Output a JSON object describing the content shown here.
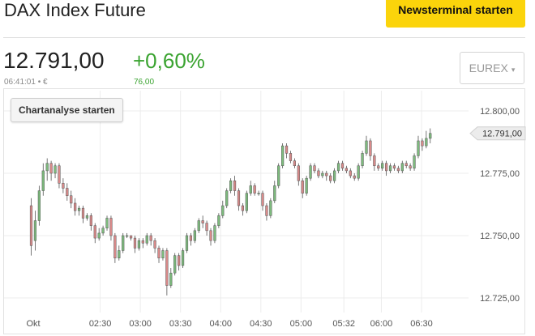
{
  "header": {
    "title": "DAX Index Future",
    "news_button": "Newsterminal starten"
  },
  "quote": {
    "price": "12.791,00",
    "time_currency": "06:41:01 • €",
    "change_pct": "+0,60%",
    "change_abs": "76,00",
    "exchange": "EUREX",
    "exchange_arrow": "▾"
  },
  "chart_button": "Chartanalyse starten",
  "colors": {
    "up": "#7dbb7d",
    "down": "#d98a8a",
    "accent_green": "#3aa330",
    "button_yellow": "#fbd40b"
  },
  "chart_data": {
    "type": "candlestick",
    "ylim": [
      12718,
      12808
    ],
    "y_ticks": [
      12800,
      12775,
      12750,
      12725
    ],
    "y_tick_labels": [
      "12.800,00",
      "12.775,00",
      "12.750,00",
      "12.725,00"
    ],
    "x_ticks": [
      {
        "label": "Okt",
        "t": -20
      },
      {
        "label": "02:30",
        "t": 30
      },
      {
        "label": "03:00",
        "t": 60
      },
      {
        "label": "03:30",
        "t": 90
      },
      {
        "label": "04:00",
        "t": 120
      },
      {
        "label": "04:30",
        "t": 150
      },
      {
        "label": "05:00",
        "t": 180
      },
      {
        "label": "05:32",
        "t": 212
      },
      {
        "label": "06:00",
        "t": 240
      },
      {
        "label": "06:30",
        "t": 270
      }
    ],
    "x_range": [
      -23,
      278
    ],
    "last_value_label": "12.791,00",
    "last_value": 12791,
    "grid": true,
    "points": [
      [
        12762,
        12746,
        12765,
        12742
      ],
      [
        12748,
        12756,
        12760,
        12744
      ],
      [
        12756,
        12768,
        12770,
        12754
      ],
      [
        12768,
        12776,
        12779,
        12766
      ],
      [
        12776,
        12779,
        12781,
        12772
      ],
      [
        12779,
        12775,
        12780,
        12772
      ],
      [
        12775,
        12778,
        12779,
        12773
      ],
      [
        12778,
        12771,
        12779,
        12769
      ],
      [
        12771,
        12769,
        12773,
        12767
      ],
      [
        12769,
        12766,
        12771,
        12764
      ],
      [
        12766,
        12763,
        12768,
        12761
      ],
      [
        12763,
        12760,
        12765,
        12758
      ],
      [
        12760,
        12761,
        12762,
        12758
      ],
      [
        12761,
        12757,
        12762,
        12755
      ],
      [
        12757,
        12758,
        12759,
        12756
      ],
      [
        12758,
        12754,
        12759,
        12752
      ],
      [
        12754,
        12749,
        12755,
        12747
      ],
      [
        12749,
        12751,
        12753,
        12748
      ],
      [
        12751,
        12753,
        12754,
        12750
      ],
      [
        12753,
        12757,
        12758,
        12752
      ],
      [
        12757,
        12750,
        12758,
        12748
      ],
      [
        12750,
        12741,
        12751,
        12739
      ],
      [
        12741,
        12744,
        12746,
        12740
      ],
      [
        12744,
        12750,
        12751,
        12743
      ],
      [
        12750,
        12750,
        12751,
        12749
      ],
      [
        12750,
        12749,
        12750,
        12748
      ],
      [
        12749,
        12745,
        12750,
        12743
      ],
      [
        12745,
        12748,
        12749,
        12744
      ],
      [
        12748,
        12747,
        12749,
        12745
      ],
      [
        12747,
        12750,
        12751,
        12746
      ],
      [
        12750,
        12748,
        12751,
        12746
      ],
      [
        12748,
        12745,
        12749,
        12743
      ],
      [
        12745,
        12741,
        12746,
        12739
      ],
      [
        12741,
        12744,
        12745,
        12740
      ],
      [
        12744,
        12730,
        12745,
        12726
      ],
      [
        12730,
        12735,
        12737,
        12729
      ],
      [
        12735,
        12742,
        12743,
        12734
      ],
      [
        12742,
        12738,
        12743,
        12736
      ],
      [
        12738,
        12744,
        12745,
        12737
      ],
      [
        12744,
        12750,
        12751,
        12743
      ],
      [
        12750,
        12748,
        12751,
        12746
      ],
      [
        12748,
        12752,
        12753,
        12747
      ],
      [
        12752,
        12756,
        12757,
        12751
      ],
      [
        12756,
        12755,
        12758,
        12753
      ],
      [
        12755,
        12752,
        12756,
        12750
      ],
      [
        12752,
        12748,
        12753,
        12746
      ],
      [
        12748,
        12754,
        12755,
        12747
      ],
      [
        12754,
        12758,
        12759,
        12753
      ],
      [
        12758,
        12762,
        12764,
        12757
      ],
      [
        12762,
        12768,
        12769,
        12761
      ],
      [
        12768,
        12772,
        12773,
        12767
      ],
      [
        12772,
        12768,
        12774,
        12766
      ],
      [
        12768,
        12762,
        12769,
        12760
      ],
      [
        12762,
        12760,
        12763,
        12758
      ],
      [
        12760,
        12767,
        12768,
        12759
      ],
      [
        12767,
        12770,
        12772,
        12766
      ],
      [
        12770,
        12767,
        12771,
        12766
      ],
      [
        12767,
        12767,
        12768,
        12766
      ],
      [
        12767,
        12762,
        12768,
        12760
      ],
      [
        12762,
        12758,
        12763,
        12756
      ],
      [
        12758,
        12764,
        12765,
        12757
      ],
      [
        12764,
        12770,
        12772,
        12763
      ],
      [
        12770,
        12778,
        12779,
        12769
      ],
      [
        12778,
        12786,
        12787,
        12777
      ],
      [
        12786,
        12783,
        12787,
        12781
      ],
      [
        12783,
        12780,
        12784,
        12779
      ],
      [
        12780,
        12778,
        12781,
        12777
      ],
      [
        12778,
        12772,
        12779,
        12770
      ],
      [
        12772,
        12767,
        12773,
        12765
      ],
      [
        12767,
        12773,
        12774,
        12766
      ],
      [
        12773,
        12778,
        12779,
        12772
      ],
      [
        12778,
        12776,
        12779,
        12775
      ],
      [
        12776,
        12774,
        12777,
        12773
      ],
      [
        12774,
        12775,
        12776,
        12773
      ],
      [
        12775,
        12774,
        12776,
        12772
      ],
      [
        12774,
        12772,
        12775,
        12771
      ],
      [
        12772,
        12776,
        12777,
        12771
      ],
      [
        12776,
        12779,
        12780,
        12775
      ],
      [
        12779,
        12777,
        12780,
        12776
      ],
      [
        12777,
        12776,
        12778,
        12775
      ],
      [
        12776,
        12774,
        12777,
        12773
      ],
      [
        12774,
        12773,
        12775,
        12772
      ],
      [
        12773,
        12778,
        12779,
        12772
      ],
      [
        12778,
        12783,
        12784,
        12777
      ],
      [
        12783,
        12788,
        12790,
        12782
      ],
      [
        12788,
        12782,
        12789,
        12780
      ],
      [
        12782,
        12778,
        12783,
        12776
      ],
      [
        12778,
        12777,
        12779,
        12776
      ],
      [
        12777,
        12779,
        12780,
        12776
      ],
      [
        12779,
        12776,
        12780,
        12774
      ],
      [
        12776,
        12778,
        12779,
        12775
      ],
      [
        12778,
        12777,
        12779,
        12776
      ],
      [
        12777,
        12776,
        12778,
        12775
      ],
      [
        12776,
        12779,
        12780,
        12775
      ],
      [
        12779,
        12778,
        12780,
        12777
      ],
      [
        12778,
        12777,
        12779,
        12776
      ],
      [
        12777,
        12782,
        12783,
        12776
      ],
      [
        12782,
        12788,
        12790,
        12781
      ],
      [
        12788,
        12786,
        12789,
        12784
      ],
      [
        12786,
        12789,
        12792,
        12785
      ],
      [
        12789,
        12791,
        12793,
        12787
      ]
    ]
  }
}
